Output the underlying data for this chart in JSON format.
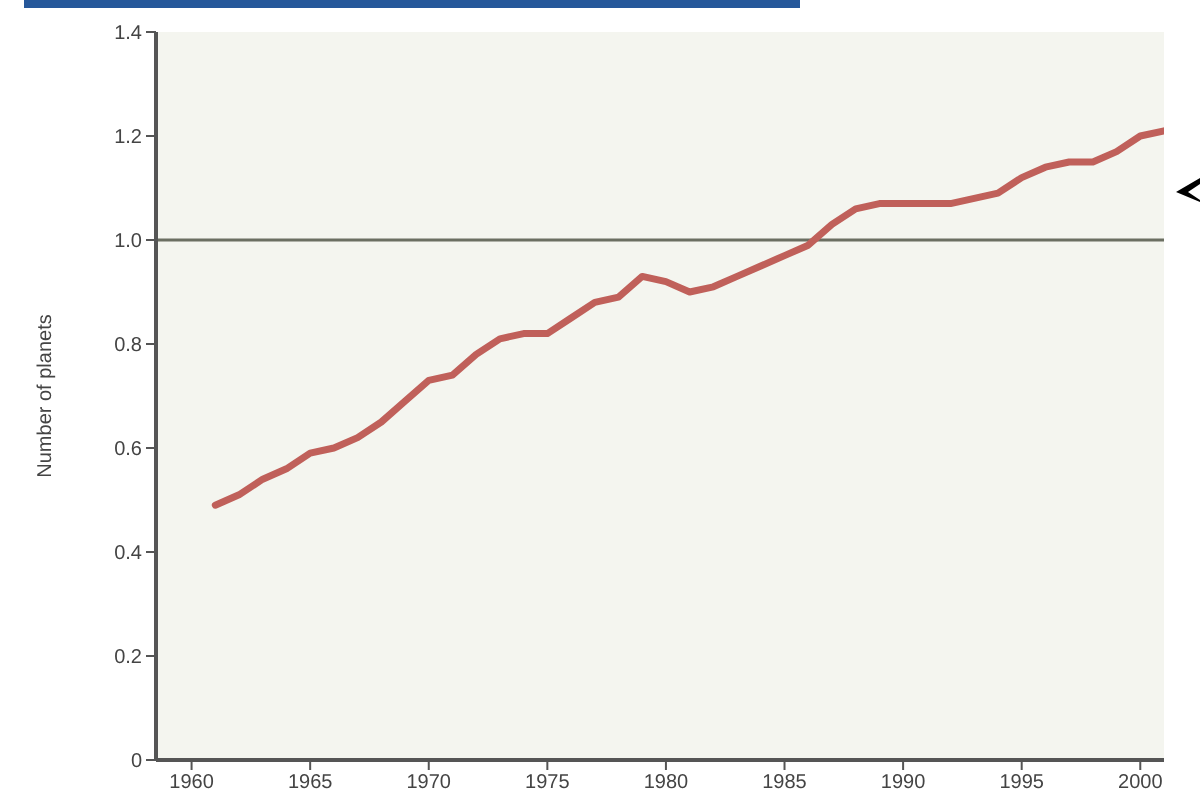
{
  "chart_data": {
    "type": "line",
    "ylabel": "Number of planets",
    "x": [
      1961,
      1962,
      1963,
      1964,
      1965,
      1966,
      1967,
      1968,
      1969,
      1970,
      1971,
      1972,
      1973,
      1974,
      1975,
      1976,
      1977,
      1978,
      1979,
      1980,
      1981,
      1982,
      1983,
      1984,
      1985,
      1986,
      1987,
      1988,
      1989,
      1990,
      1991,
      1992,
      1993,
      1994,
      1995,
      1996,
      1997,
      1998,
      1999,
      2000,
      2001
    ],
    "series": [
      {
        "color": "#c0605a",
        "values": [
          0.49,
          0.51,
          0.54,
          0.56,
          0.59,
          0.6,
          0.62,
          0.65,
          0.69,
          0.73,
          0.74,
          0.78,
          0.81,
          0.82,
          0.82,
          0.85,
          0.88,
          0.89,
          0.93,
          0.92,
          0.9,
          0.91,
          0.93,
          0.95,
          0.97,
          0.99,
          1.03,
          1.06,
          1.07,
          1.07,
          1.07,
          1.07,
          1.08,
          1.09,
          1.12,
          1.14,
          1.15,
          1.15,
          1.17,
          1.2,
          1.21
        ]
      }
    ],
    "xlim": [
      1958.5,
      2001
    ],
    "xticks": [
      1960,
      1965,
      1970,
      1975,
      1980,
      1985,
      1990,
      1995,
      2000
    ],
    "ylim": [
      0,
      1.4
    ],
    "yticks": [
      0,
      0.2,
      0.4,
      0.6,
      0.8,
      {
        "value": 1,
        "label": "1.0"
      },
      1.2,
      1.4
    ],
    "ref_lines": [
      {
        "axis": "y",
        "value": 1,
        "color": "#6b6f62"
      }
    ],
    "grid": false,
    "marker": "none",
    "line_style": "solid"
  }
}
